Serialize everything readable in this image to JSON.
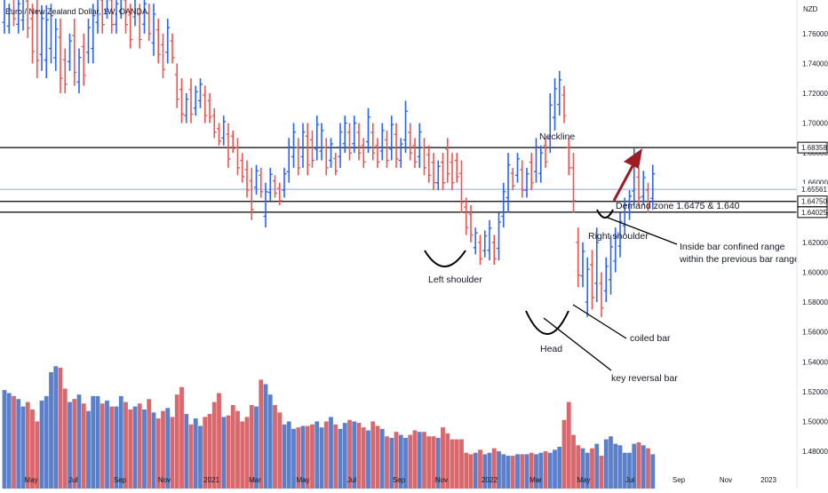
{
  "chart_data": {
    "type": "ohlc",
    "title": "Euro / New Zealand Dollar, 1W, OANDA",
    "currency": "NZD",
    "ylim": [
      1.455,
      1.7825
    ],
    "y_ticks": [
      1.48,
      1.5,
      1.52,
      1.54,
      1.56,
      1.58,
      1.6,
      1.62,
      1.64,
      1.66,
      1.68,
      1.7,
      1.72,
      1.74,
      1.76
    ],
    "x_tick_labels": [
      "May",
      "Jul",
      "Sep",
      "Nov",
      "2021",
      "Mar",
      "May",
      "Jul",
      "Sep",
      "Nov",
      "2022",
      "Mar",
      "May",
      "Jul",
      "Sep",
      "Nov",
      "2023"
    ],
    "colors": {
      "up": "#2962ff",
      "down": "#ef5350",
      "vol_up": "#5b7fc9",
      "vol_down": "#d9676b",
      "line": "#000000",
      "arrow": "#9c1c25",
      "price_line": "#90a4f0"
    },
    "levels": [
      {
        "label": "1.68358",
        "value": 1.68358
      },
      {
        "label": "1.64750",
        "value": 1.6475
      },
      {
        "label": "1.64025",
        "value": 1.64025
      }
    ],
    "current_price": {
      "label": "1.65561",
      "value": 1.65561
    },
    "annotations": {
      "neckline": "Neckline",
      "demand_zone": "Demand zone 1.6475 & 1.640",
      "right_shoulder": "Right shoulder",
      "inside_bar_1": "Inside bar confined range",
      "inside_bar_2": "within the previous bar range",
      "left_shoulder": "Left shoulder",
      "coiled_bar": "coiled bar",
      "head": "Head",
      "key_reversal_bar": "key reversal bar"
    },
    "bars": [
      {
        "h": 1.79,
        "l": 1.76,
        "u": true,
        "v": 1.521
      },
      {
        "h": 1.78,
        "l": 1.76,
        "u": true,
        "v": 1.519
      },
      {
        "h": 1.79,
        "l": 1.765,
        "u": false,
        "v": 1.517
      },
      {
        "h": 1.785,
        "l": 1.76,
        "u": true,
        "v": 1.515
      },
      {
        "h": 1.79,
        "l": 1.762,
        "u": true,
        "v": 1.51
      },
      {
        "h": 1.79,
        "l": 1.757,
        "u": false,
        "v": 1.513
      },
      {
        "h": 1.78,
        "l": 1.74,
        "u": false,
        "v": 1.508
      },
      {
        "h": 1.79,
        "l": 1.73,
        "u": false,
        "v": 1.5
      },
      {
        "h": 1.779,
        "l": 1.735,
        "u": true,
        "v": 1.514
      },
      {
        "h": 1.779,
        "l": 1.73,
        "u": true,
        "v": 1.517
      },
      {
        "h": 1.78,
        "l": 1.74,
        "u": true,
        "v": 1.533
      },
      {
        "h": 1.77,
        "l": 1.735,
        "u": true,
        "v": 1.537
      },
      {
        "h": 1.77,
        "l": 1.72,
        "u": false,
        "v": 1.536
      },
      {
        "h": 1.75,
        "l": 1.72,
        "u": false,
        "v": 1.522
      },
      {
        "h": 1.76,
        "l": 1.735,
        "u": true,
        "v": 1.513
      },
      {
        "h": 1.77,
        "l": 1.725,
        "u": false,
        "v": 1.515
      },
      {
        "h": 1.75,
        "l": 1.72,
        "u": true,
        "v": 1.518
      },
      {
        "h": 1.76,
        "l": 1.725,
        "u": false,
        "v": 1.512
      },
      {
        "h": 1.77,
        "l": 1.74,
        "u": true,
        "v": 1.507
      },
      {
        "h": 1.78,
        "l": 1.74,
        "u": true,
        "v": 1.517
      },
      {
        "h": 1.79,
        "l": 1.76,
        "u": true,
        "v": 1.517
      },
      {
        "h": 1.79,
        "l": 1.76,
        "u": false,
        "v": 1.512
      },
      {
        "h": 1.79,
        "l": 1.77,
        "u": true,
        "v": 1.514
      },
      {
        "h": 1.79,
        "l": 1.76,
        "u": false,
        "v": 1.51
      },
      {
        "h": 1.785,
        "l": 1.76,
        "u": true,
        "v": 1.51
      },
      {
        "h": 1.79,
        "l": 1.77,
        "u": true,
        "v": 1.517
      },
      {
        "h": 1.79,
        "l": 1.76,
        "u": false,
        "v": 1.513
      },
      {
        "h": 1.78,
        "l": 1.75,
        "u": false,
        "v": 1.508
      },
      {
        "h": 1.79,
        "l": 1.765,
        "u": true,
        "v": 1.51
      },
      {
        "h": 1.78,
        "l": 1.75,
        "u": false,
        "v": 1.512
      },
      {
        "h": 1.785,
        "l": 1.76,
        "u": true,
        "v": 1.508
      },
      {
        "h": 1.78,
        "l": 1.755,
        "u": false,
        "v": 1.515
      },
      {
        "h": 1.78,
        "l": 1.745,
        "u": true,
        "v": 1.506
      },
      {
        "h": 1.77,
        "l": 1.74,
        "u": false,
        "v": 1.502
      },
      {
        "h": 1.76,
        "l": 1.73,
        "u": false,
        "v": 1.507
      },
      {
        "h": 1.77,
        "l": 1.74,
        "u": true,
        "v": 1.509
      },
      {
        "h": 1.76,
        "l": 1.74,
        "u": false,
        "v": 1.503
      },
      {
        "h": 1.74,
        "l": 1.71,
        "u": false,
        "v": 1.518
      },
      {
        "h": 1.73,
        "l": 1.7,
        "u": false,
        "v": 1.523
      },
      {
        "h": 1.72,
        "l": 1.7,
        "u": true,
        "v": 1.505
      },
      {
        "h": 1.73,
        "l": 1.7,
        "u": false,
        "v": 1.498
      },
      {
        "h": 1.725,
        "l": 1.705,
        "u": true,
        "v": 1.502
      },
      {
        "h": 1.73,
        "l": 1.71,
        "u": true,
        "v": 1.497
      },
      {
        "h": 1.725,
        "l": 1.7,
        "u": false,
        "v": 1.503
      },
      {
        "h": 1.72,
        "l": 1.7,
        "u": false,
        "v": 1.505
      },
      {
        "h": 1.71,
        "l": 1.69,
        "u": false,
        "v": 1.513
      },
      {
        "h": 1.7,
        "l": 1.685,
        "u": false,
        "v": 1.519
      },
      {
        "h": 1.705,
        "l": 1.685,
        "u": true,
        "v": 1.503
      },
      {
        "h": 1.7,
        "l": 1.67,
        "u": false,
        "v": 1.504
      },
      {
        "h": 1.695,
        "l": 1.68,
        "u": false,
        "v": 1.511
      },
      {
        "h": 1.69,
        "l": 1.665,
        "u": false,
        "v": 1.507
      },
      {
        "h": 1.68,
        "l": 1.66,
        "u": false,
        "v": 1.5
      },
      {
        "h": 1.675,
        "l": 1.65,
        "u": false,
        "v": 1.503
      },
      {
        "h": 1.67,
        "l": 1.635,
        "u": false,
        "v": 1.511
      },
      {
        "h": 1.672,
        "l": 1.652,
        "u": true,
        "v": 1.51
      },
      {
        "h": 1.67,
        "l": 1.65,
        "u": false,
        "v": 1.528
      },
      {
        "h": 1.66,
        "l": 1.63,
        "u": true,
        "v": 1.525
      },
      {
        "h": 1.67,
        "l": 1.648,
        "u": true,
        "v": 1.518
      },
      {
        "h": 1.665,
        "l": 1.65,
        "u": false,
        "v": 1.511
      },
      {
        "h": 1.66,
        "l": 1.645,
        "u": false,
        "v": 1.506
      },
      {
        "h": 1.67,
        "l": 1.65,
        "u": true,
        "v": 1.498
      },
      {
        "h": 1.69,
        "l": 1.66,
        "u": true,
        "v": 1.5
      },
      {
        "h": 1.7,
        "l": 1.67,
        "u": true,
        "v": 1.495
      },
      {
        "h": 1.69,
        "l": 1.665,
        "u": false,
        "v": 1.496
      },
      {
        "h": 1.7,
        "l": 1.67,
        "u": true,
        "v": 1.497
      },
      {
        "h": 1.7,
        "l": 1.665,
        "u": false,
        "v": 1.497
      },
      {
        "h": 1.695,
        "l": 1.67,
        "u": false,
        "v": 1.498
      },
      {
        "h": 1.705,
        "l": 1.675,
        "u": true,
        "v": 1.5
      },
      {
        "h": 1.7,
        "l": 1.675,
        "u": true,
        "v": 1.496
      },
      {
        "h": 1.69,
        "l": 1.665,
        "u": false,
        "v": 1.5
      },
      {
        "h": 1.69,
        "l": 1.67,
        "u": true,
        "v": 1.503
      },
      {
        "h": 1.68,
        "l": 1.665,
        "u": false,
        "v": 1.498
      },
      {
        "h": 1.7,
        "l": 1.67,
        "u": true,
        "v": 1.495
      },
      {
        "h": 1.705,
        "l": 1.68,
        "u": true,
        "v": 1.499
      },
      {
        "h": 1.7,
        "l": 1.675,
        "u": false,
        "v": 1.501
      },
      {
        "h": 1.705,
        "l": 1.68,
        "u": true,
        "v": 1.5
      },
      {
        "h": 1.7,
        "l": 1.675,
        "u": false,
        "v": 1.499
      },
      {
        "h": 1.69,
        "l": 1.67,
        "u": false,
        "v": 1.496
      },
      {
        "h": 1.71,
        "l": 1.68,
        "u": true,
        "v": 1.494
      },
      {
        "h": 1.7,
        "l": 1.675,
        "u": false,
        "v": 1.5
      },
      {
        "h": 1.69,
        "l": 1.67,
        "u": false,
        "v": 1.497
      },
      {
        "h": 1.7,
        "l": 1.675,
        "u": true,
        "v": 1.495
      },
      {
        "h": 1.695,
        "l": 1.67,
        "u": false,
        "v": 1.49
      },
      {
        "h": 1.705,
        "l": 1.675,
        "u": true,
        "v": 1.489
      },
      {
        "h": 1.7,
        "l": 1.67,
        "u": false,
        "v": 1.493
      },
      {
        "h": 1.69,
        "l": 1.67,
        "u": true,
        "v": 1.491
      },
      {
        "h": 1.715,
        "l": 1.68,
        "u": true,
        "v": 1.489
      },
      {
        "h": 1.7,
        "l": 1.675,
        "u": false,
        "v": 1.491
      },
      {
        "h": 1.69,
        "l": 1.67,
        "u": false,
        "v": 1.494
      },
      {
        "h": 1.7,
        "l": 1.67,
        "u": true,
        "v": 1.493
      },
      {
        "h": 1.69,
        "l": 1.665,
        "u": false,
        "v": 1.493
      },
      {
        "h": 1.685,
        "l": 1.66,
        "u": false,
        "v": 1.49
      },
      {
        "h": 1.68,
        "l": 1.655,
        "u": false,
        "v": 1.49
      },
      {
        "h": 1.675,
        "l": 1.655,
        "u": true,
        "v": 1.489
      },
      {
        "h": 1.68,
        "l": 1.655,
        "u": false,
        "v": 1.496
      },
      {
        "h": 1.69,
        "l": 1.66,
        "u": false,
        "v": 1.492
      },
      {
        "h": 1.68,
        "l": 1.655,
        "u": false,
        "v": 1.488
      },
      {
        "h": 1.68,
        "l": 1.66,
        "u": false,
        "v": 1.488
      },
      {
        "h": 1.675,
        "l": 1.64,
        "u": false,
        "v": 1.488
      },
      {
        "h": 1.65,
        "l": 1.625,
        "u": false,
        "v": 1.479
      },
      {
        "h": 1.645,
        "l": 1.62,
        "u": false,
        "v": 1.478
      },
      {
        "h": 1.63,
        "l": 1.612,
        "u": true,
        "v": 1.479
      },
      {
        "h": 1.625,
        "l": 1.605,
        "u": false,
        "v": 1.481
      },
      {
        "h": 1.628,
        "l": 1.61,
        "u": true,
        "v": 1.478
      },
      {
        "h": 1.635,
        "l": 1.608,
        "u": true,
        "v": 1.479
      },
      {
        "h": 1.625,
        "l": 1.605,
        "u": false,
        "v": 1.482
      },
      {
        "h": 1.64,
        "l": 1.608,
        "u": true,
        "v": 1.48
      },
      {
        "h": 1.66,
        "l": 1.63,
        "u": true,
        "v": 1.478
      },
      {
        "h": 1.68,
        "l": 1.64,
        "u": true,
        "v": 1.477
      },
      {
        "h": 1.67,
        "l": 1.655,
        "u": false,
        "v": 1.477
      },
      {
        "h": 1.68,
        "l": 1.66,
        "u": true,
        "v": 1.478
      },
      {
        "h": 1.675,
        "l": 1.65,
        "u": false,
        "v": 1.478
      },
      {
        "h": 1.67,
        "l": 1.65,
        "u": true,
        "v": 1.478
      },
      {
        "h": 1.68,
        "l": 1.655,
        "u": false,
        "v": 1.479
      },
      {
        "h": 1.69,
        "l": 1.66,
        "u": true,
        "v": 1.478
      },
      {
        "h": 1.685,
        "l": 1.66,
        "u": true,
        "v": 1.479
      },
      {
        "h": 1.69,
        "l": 1.67,
        "u": false,
        "v": 1.48
      },
      {
        "h": 1.72,
        "l": 1.68,
        "u": true,
        "v": 1.479
      },
      {
        "h": 1.73,
        "l": 1.695,
        "u": true,
        "v": 1.481
      },
      {
        "h": 1.735,
        "l": 1.705,
        "u": true,
        "v": 1.483
      },
      {
        "h": 1.725,
        "l": 1.7,
        "u": false,
        "v": 1.501
      },
      {
        "h": 1.69,
        "l": 1.665,
        "u": false,
        "v": 1.513
      },
      {
        "h": 1.68,
        "l": 1.64,
        "u": false,
        "v": 1.491
      },
      {
        "h": 1.63,
        "l": 1.59,
        "u": false,
        "v": 1.484
      },
      {
        "h": 1.62,
        "l": 1.59,
        "u": true,
        "v": 1.482
      },
      {
        "h": 1.61,
        "l": 1.57,
        "u": true,
        "v": 1.479
      },
      {
        "h": 1.615,
        "l": 1.575,
        "u": false,
        "v": 1.482
      },
      {
        "h": 1.63,
        "l": 1.58,
        "u": true,
        "v": 1.485
      },
      {
        "h": 1.6,
        "l": 1.57,
        "u": false,
        "v": 1.477
      },
      {
        "h": 1.61,
        "l": 1.58,
        "u": true,
        "v": 1.488
      },
      {
        "h": 1.625,
        "l": 1.585,
        "u": true,
        "v": 1.49
      },
      {
        "h": 1.63,
        "l": 1.6,
        "u": true,
        "v": 1.485
      },
      {
        "h": 1.64,
        "l": 1.61,
        "u": true,
        "v": 1.484
      },
      {
        "h": 1.65,
        "l": 1.625,
        "u": true,
        "v": 1.479
      },
      {
        "h": 1.655,
        "l": 1.635,
        "u": true,
        "v": 1.479
      },
      {
        "h": 1.683,
        "l": 1.645,
        "u": true,
        "v": 1.485
      },
      {
        "h": 1.67,
        "l": 1.645,
        "u": false,
        "v": 1.486
      },
      {
        "h": 1.668,
        "l": 1.645,
        "u": true,
        "v": 1.484
      },
      {
        "h": 1.66,
        "l": 1.64,
        "u": false,
        "v": 1.482
      },
      {
        "h": 1.672,
        "l": 1.642,
        "u": true,
        "v": 1.478
      }
    ]
  }
}
